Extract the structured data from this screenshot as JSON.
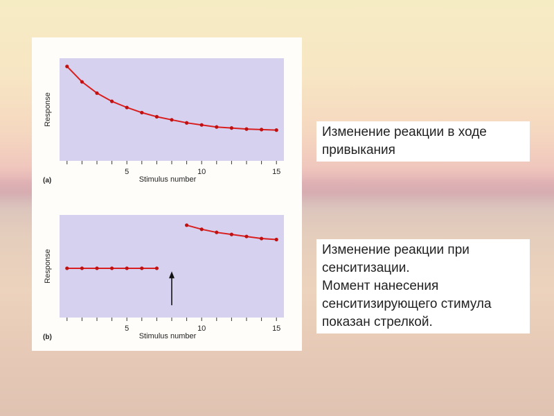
{
  "chart_data": [
    {
      "type": "line",
      "panel_label": "(a)",
      "xlabel": "Stimulus number",
      "ylabel": "Response",
      "xlim": [
        0.5,
        15.5
      ],
      "ylim": [
        0,
        10
      ],
      "xticks": [
        5,
        10,
        15
      ],
      "series": [
        {
          "x": [
            1,
            2,
            3,
            4,
            5,
            6,
            7,
            8,
            9,
            10,
            11,
            12,
            13,
            14,
            15
          ],
          "values": [
            9.2,
            7.7,
            6.6,
            5.8,
            5.2,
            4.7,
            4.3,
            4.0,
            3.7,
            3.5,
            3.3,
            3.2,
            3.1,
            3.05,
            3.0
          ]
        }
      ],
      "grid": false,
      "legend": "none"
    },
    {
      "type": "line",
      "panel_label": "(b)",
      "xlabel": "Stimulus number",
      "ylabel": "Response",
      "xlim": [
        0.5,
        15.5
      ],
      "ylim": [
        0,
        10
      ],
      "xticks": [
        5,
        10,
        15
      ],
      "series": [
        {
          "x": [
            1,
            2,
            3,
            4,
            5,
            6,
            7
          ],
          "values": [
            4.8,
            4.8,
            4.8,
            4.8,
            4.8,
            4.8,
            4.8
          ]
        },
        {
          "x": [
            9,
            10,
            11,
            12,
            13,
            14,
            15
          ],
          "values": [
            9.0,
            8.6,
            8.3,
            8.1,
            7.9,
            7.7,
            7.6
          ]
        }
      ],
      "annotation": {
        "type": "arrow",
        "x": 8
      },
      "grid": false,
      "legend": "none"
    }
  ],
  "captions": {
    "habituation": [
      "Изменение реакции в ходе",
      "привыкания"
    ],
    "sensitization": [
      "Изменение реакции при",
      "сенситизации.",
      "Момент нанесения",
      "сенситизирующего стимула",
      "показан стрелкой."
    ]
  },
  "colors": {
    "plot_bg": "#d5d1ef",
    "line": "#d81e1e",
    "marker": "#c01010"
  }
}
